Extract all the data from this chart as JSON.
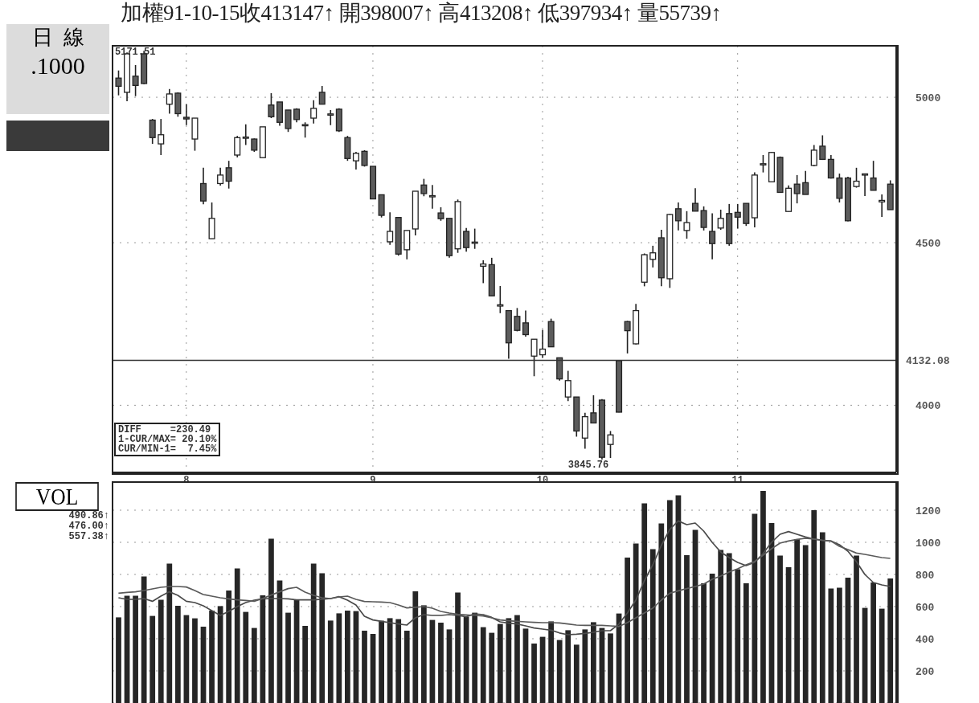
{
  "chart_data": [
    {
      "type": "candlestick",
      "title": "加權91-10-15收413147↑ 開398007↑ 高413208↑ 低397934↑ 量55739↑",
      "categories": [
        null,
        null,
        null,
        null,
        null,
        null,
        null,
        null,
        "8",
        null,
        null,
        null,
        null,
        null,
        null,
        null,
        null,
        null,
        null,
        null,
        null,
        null,
        null,
        null,
        null,
        null,
        null,
        null,
        null,
        null,
        "9",
        null,
        null,
        null,
        null,
        null,
        null,
        null,
        null,
        null,
        null,
        null,
        null,
        null,
        null,
        null,
        null,
        null,
        null,
        null,
        "10",
        null,
        null,
        null,
        null,
        null,
        null,
        null,
        null,
        null,
        null,
        null,
        null,
        null,
        null,
        null,
        null,
        null,
        null,
        null,
        null,
        null,
        null,
        "11",
        null,
        null,
        null,
        null,
        null,
        null,
        null,
        null,
        null,
        null,
        null,
        null,
        null,
        null,
        null,
        null,
        null,
        null
      ],
      "ohlc": [
        [
          5040,
          5098,
          5007,
          5070
        ],
        [
          5160,
          5165,
          4986,
          5018
        ],
        [
          5043,
          5118,
          5004,
          5077
        ],
        [
          5050,
          5171.51,
          5048,
          5160
        ],
        [
          4856,
          4922,
          4834,
          4918
        ],
        [
          4866,
          4922,
          4795,
          4834
        ],
        [
          5012,
          5030,
          4941,
          4975
        ],
        [
          4941,
          5018,
          4930,
          5015
        ],
        [
          4922,
          4975,
          4900,
          4928
        ],
        [
          4925,
          4925,
          4810,
          4851
        ],
        [
          4638,
          4751,
          4627,
          4697
        ],
        [
          4580,
          4633,
          4513,
          4513
        ],
        [
          4726,
          4751,
          4690,
          4697
        ],
        [
          4705,
          4775,
          4680,
          4751
        ],
        [
          4856,
          4862,
          4787,
          4795
        ],
        [
          4858,
          4903,
          4830,
          4855
        ],
        [
          4812,
          4853,
          4806,
          4851
        ],
        [
          4894,
          4894,
          4786,
          4786
        ],
        [
          4930,
          5015,
          4925,
          4972
        ],
        [
          4910,
          4983,
          4898,
          4983
        ],
        [
          4888,
          4954,
          4876,
          4954
        ],
        [
          4920,
          4960,
          4910,
          4957
        ],
        [
          4902,
          4910,
          4856,
          4898
        ],
        [
          4960,
          4989,
          4906,
          4925
        ],
        [
          4975,
          5041,
          4975,
          5018
        ],
        [
          4940,
          4954,
          4900,
          4936
        ],
        [
          4880,
          4960,
          4876,
          4957
        ],
        [
          4783,
          4862,
          4775,
          4856
        ],
        [
          4801,
          4806,
          4745,
          4775
        ],
        [
          4759,
          4812,
          4755,
          4808
        ],
        [
          4645,
          4756,
          4645,
          4756
        ],
        [
          4590,
          4659,
          4583,
          4659
        ],
        [
          4537,
          4600,
          4493,
          4503
        ],
        [
          4463,
          4583,
          4458,
          4583
        ],
        [
          4540,
          4540,
          4446,
          4477
        ],
        [
          4671,
          4671,
          4524,
          4545
        ],
        [
          4663,
          4713,
          4654,
          4692
        ],
        [
          4656,
          4692,
          4612,
          4652
        ],
        [
          4579,
          4617,
          4572,
          4598
        ],
        [
          4458,
          4580,
          4451,
          4580
        ],
        [
          4636,
          4643,
          4467,
          4480
        ],
        [
          4484,
          4548,
          4471,
          4537
        ],
        [
          4502,
          4546,
          4480,
          4498
        ],
        [
          4431,
          4443,
          4370,
          4424
        ],
        [
          4330,
          4451,
          4330,
          4429
        ],
        [
          4302,
          4361,
          4276,
          4298
        ],
        [
          4185,
          4284,
          4137,
          4284
        ],
        [
          4223,
          4292,
          4220,
          4266
        ],
        [
          4210,
          4284,
          4204,
          4246
        ],
        [
          4196,
          4196,
          4085,
          4145
        ],
        [
          4166,
          4225,
          4140,
          4149
        ],
        [
          4173,
          4259,
          4173,
          4250
        ],
        [
          4077,
          4140,
          4072,
          4140
        ],
        [
          4072,
          4101,
          4012,
          4024
        ],
        [
          3926,
          4024,
          3910,
          4024
        ],
        [
          3967,
          3978,
          3876,
          3906
        ],
        [
          3949,
          4029,
          3949,
          3978
        ],
        [
          3852,
          4018,
          3845.76,
          4015
        ],
        [
          3915,
          3926,
          3850,
          3888
        ],
        [
          3980.07,
          4132.08,
          3979.34,
          4131.47
        ],
        [
          4222,
          4252,
          4153,
          4250
        ],
        [
          4284,
          4305,
          4180,
          4182
        ],
        [
          4461,
          4465,
          4360,
          4373
        ],
        [
          4467,
          4490,
          4420,
          4446
        ],
        [
          4387,
          4542,
          4360,
          4516
        ],
        [
          4593,
          4595,
          4355,
          4384
        ],
        [
          4572,
          4633,
          4540,
          4612
        ],
        [
          4566,
          4604,
          4513,
          4540
        ],
        [
          4604,
          4681,
          4604,
          4630
        ],
        [
          4550,
          4620,
          4540,
          4606
        ],
        [
          4497,
          4597,
          4446,
          4537
        ],
        [
          4580,
          4609,
          4542,
          4548
        ],
        [
          4497,
          4628,
          4490,
          4596
        ],
        [
          4584,
          4628,
          4546,
          4600
        ],
        [
          4563,
          4630,
          4555,
          4630
        ],
        [
          4726,
          4735,
          4550,
          4582
        ],
        [
          4765,
          4795,
          4735,
          4761
        ],
        [
          4804,
          4806,
          4703,
          4703
        ],
        [
          4667,
          4790,
          4667,
          4787
        ],
        [
          4681,
          4691,
          4603,
          4603
        ],
        [
          4663,
          4726,
          4630,
          4695
        ],
        [
          4660,
          4740,
          4660,
          4700
        ],
        [
          4812,
          4830,
          4756,
          4759
        ],
        [
          4780,
          4864,
          4778,
          4826
        ],
        [
          4716,
          4795,
          4714,
          4780
        ],
        [
          4647,
          4731,
          4633,
          4716
        ],
        [
          4572,
          4720,
          4570,
          4716
        ],
        [
          4705,
          4751,
          4683,
          4687
        ],
        [
          4730,
          4731,
          4655,
          4727
        ],
        [
          4674,
          4775,
          4674,
          4716
        ],
        [
          4640,
          4660,
          4585,
          4635
        ],
        [
          4609,
          4708,
          4609,
          4695
        ]
      ],
      "colors": [
        "#5c5c5c",
        "#ffffff",
        "#5c5c5c",
        "#5c5c5c",
        "#5c5c5c",
        "#ffffff",
        "#ffffff",
        "#5c5c5c",
        "#5c5c5c",
        "#ffffff",
        "#5c5c5c",
        "#ffffff",
        "#ffffff",
        "#5c5c5c",
        "#ffffff",
        "#ffffff",
        "#5c5c5c",
        "#ffffff",
        "#5c5c5c",
        "#5c5c5c",
        "#5c5c5c",
        "#5c5c5c",
        "#ffffff",
        "#ffffff",
        "#5c5c5c",
        "#ffffff",
        "#5c5c5c",
        "#5c5c5c",
        "#ffffff",
        "#5c5c5c",
        "#5c5c5c",
        "#5c5c5c",
        "#ffffff",
        "#5c5c5c",
        "#ffffff",
        "#ffffff",
        "#5c5c5c",
        "#ffffff",
        "#5c5c5c",
        "#5c5c5c",
        "#ffffff",
        "#5c5c5c",
        "#ffffff",
        "#ffffff",
        "#5c5c5c",
        "#ffffff",
        "#5c5c5c",
        "#5c5c5c",
        "#5c5c5c",
        "#ffffff",
        "#ffffff",
        "#5c5c5c",
        "#5c5c5c",
        "#ffffff",
        "#5c5c5c",
        "#ffffff",
        "#5c5c5c",
        "#5c5c5c",
        "#ffffff",
        "#5c5c5c",
        "#5c5c5c",
        "#ffffff",
        "#ffffff",
        "#ffffff",
        "#5c5c5c",
        "#ffffff",
        "#5c5c5c",
        "#ffffff",
        "#5c5c5c",
        "#5c5c5c",
        "#5c5c5c",
        "#ffffff",
        "#5c5c5c",
        "#5c5c5c",
        "#5c5c5c",
        "#ffffff",
        "#ffffff",
        "#ffffff",
        "#5c5c5c",
        "#ffffff",
        "#5c5c5c",
        "#5c5c5c",
        "#ffffff",
        "#5c5c5c",
        "#5c5c5c",
        "#5c5c5c",
        "#5c5c5c",
        "#ffffff",
        "#ffffff",
        "#5c5c5c",
        "#ffffff",
        "#5c5c5c"
      ],
      "ylim": [
        3810,
        5190
      ],
      "yticks": [
        4000,
        4500,
        5000
      ],
      "log": "y",
      "grid": true,
      "ref_lines": [
        {
          "axis": "y",
          "value": 4132.08,
          "label": "4132.08"
        }
      ],
      "annotations": [
        "5171.51",
        "3845.76",
        "DIFF     =230.49",
        "1-CUR/MAX= 20.10%",
        "CUR/MIN-1=  7.45%",
        "日  線",
        ".1000"
      ]
    },
    {
      "type": "bar",
      "title": "VOL",
      "categories": [
        null,
        null,
        null,
        null,
        null,
        null,
        null,
        null,
        "8",
        null,
        null,
        null,
        null,
        null,
        null,
        null,
        null,
        null,
        null,
        null,
        null,
        null,
        null,
        null,
        null,
        null,
        null,
        null,
        null,
        null,
        "9",
        null,
        null,
        null,
        null,
        null,
        null,
        null,
        null,
        null,
        null,
        null,
        null,
        null,
        null,
        null,
        null,
        null,
        null,
        null,
        "10",
        null,
        null,
        null,
        null,
        null,
        null,
        null,
        null,
        null,
        null,
        null,
        null,
        null,
        null,
        null,
        null,
        null,
        null,
        null,
        null,
        null,
        null,
        "11",
        null,
        null,
        null,
        null,
        null,
        null,
        null,
        null,
        null,
        null,
        null,
        null,
        null,
        null,
        null,
        null,
        null,
        null
      ],
      "series": [
        {
          "type": "bar",
          "color": "#262626",
          "values": [
            533,
            667,
            667,
            787,
            542,
            642,
            867,
            605,
            547,
            527,
            475,
            575,
            603,
            700,
            837,
            567,
            467,
            670,
            1023,
            763,
            562,
            642,
            480,
            867,
            808,
            513,
            558,
            575,
            572,
            450,
            430,
            512,
            528,
            522,
            450,
            695,
            608,
            517,
            500,
            458,
            687,
            537,
            562,
            472,
            437,
            492,
            528,
            547,
            463,
            370,
            412,
            508,
            392,
            453,
            363,
            458,
            503,
            467,
            433,
            557,
            905,
            992,
            1242,
            958,
            1117,
            1263,
            1292,
            920,
            1078,
            745,
            805,
            953,
            933,
            833,
            745,
            1178,
            1320,
            1120,
            917,
            845,
            1020,
            983,
            1200,
            1062,
            712,
            717,
            780,
            917,
            592,
            750,
            587,
            775
          ]
        },
        {
          "type": "line",
          "color": "#4a4a4a",
          "values": [
            655,
            645,
            645,
            650,
            633,
            665,
            692,
            670,
            633,
            625,
            605,
            575,
            545,
            570,
            600,
            625,
            640,
            648,
            650,
            650,
            648,
            642,
            642,
            642,
            646,
            650,
            662,
            640,
            610,
            540,
            517,
            508,
            500,
            492,
            485,
            530,
            550,
            545,
            545,
            550,
            545,
            537,
            555,
            550,
            533,
            505,
            497,
            492,
            480,
            467,
            460,
            453,
            436,
            425,
            428,
            433,
            440,
            450,
            450,
            491,
            560,
            640,
            760,
            860,
            980,
            1080,
            1133,
            1110,
            1120,
            1070,
            1000,
            940,
            905,
            875,
            855,
            875,
            930,
            1000,
            1050,
            1067,
            1050,
            1033,
            1020,
            1012,
            1008,
            985,
            945,
            880,
            800,
            750,
            735,
            725
          ]
        },
        {
          "type": "line",
          "color": "#5a5a5a",
          "values": [
            683,
            688,
            692,
            700,
            710,
            720,
            725,
            725,
            722,
            700,
            675,
            665,
            655,
            648,
            642,
            638,
            633,
            650,
            672,
            692,
            712,
            720,
            690,
            670,
            655,
            650,
            660,
            665,
            645,
            632,
            630,
            628,
            625,
            610,
            592,
            596,
            600,
            590,
            570,
            560,
            552,
            548,
            545,
            542,
            530,
            517,
            512,
            508,
            505,
            502,
            500,
            500,
            498,
            492,
            485,
            483,
            483,
            483,
            480,
            476,
            500,
            530,
            560,
            590,
            640,
            683,
            698,
            712,
            725,
            740,
            770,
            790,
            815,
            835,
            860,
            880,
            920,
            960,
            995,
            1008,
            1018,
            1025,
            1020,
            1013,
            1008,
            975,
            955,
            933,
            925,
            915,
            905,
            900
          ]
        }
      ],
      "ylim": [
        0,
        1375
      ],
      "yticks": [
        200,
        400,
        600,
        800,
        1000,
        1200
      ],
      "grid": true,
      "tick_labels": "y",
      "annotations": [
        "490.86↑",
        "476.00↑",
        "557.38↑"
      ]
    }
  ]
}
